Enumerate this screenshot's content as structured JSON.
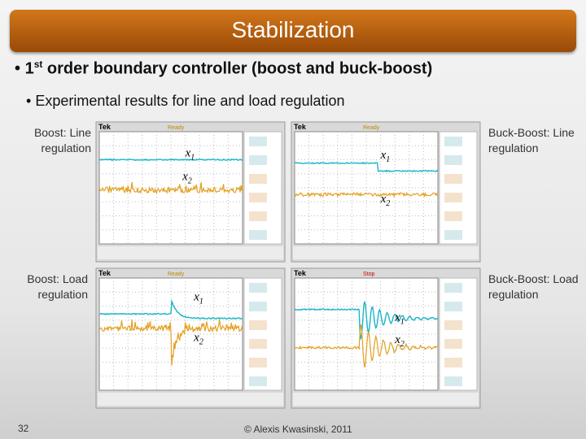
{
  "header": {
    "title": "Stabilization"
  },
  "bullets": [
    {
      "text": "1st order boundary controller (boost and buck-boost)",
      "sup": "st",
      "lead": "1",
      "rest": " order boundary controller (boost and buck-boost)"
    },
    {
      "text": "Experimental results for line and load regulation"
    }
  ],
  "panels": [
    {
      "caption": "Boost: Line regulation",
      "brand": "Tek",
      "state": "Ready",
      "labels": [
        {
          "var": "x",
          "sub": "1"
        },
        {
          "var": "x",
          "sub": "2"
        }
      ]
    },
    {
      "caption": "Buck-Boost: Line regulation",
      "brand": "Tek",
      "state": "Ready",
      "labels": [
        {
          "var": "x",
          "sub": "1"
        },
        {
          "var": "x",
          "sub": "2"
        }
      ]
    },
    {
      "caption": "Boost: Load regulation",
      "brand": "Tek",
      "state": "Ready",
      "labels": [
        {
          "var": "x",
          "sub": "1"
        },
        {
          "var": "x",
          "sub": "2"
        }
      ]
    },
    {
      "caption": "Buck-Boost: Load regulation",
      "brand": "Tek",
      "state": "Stop",
      "labels": [
        {
          "var": "x",
          "sub": "1"
        },
        {
          "var": "x",
          "sub": "2"
        }
      ]
    }
  ],
  "footer": {
    "page": "32",
    "copyright": "© Alexis Kwasinski, 2011"
  }
}
